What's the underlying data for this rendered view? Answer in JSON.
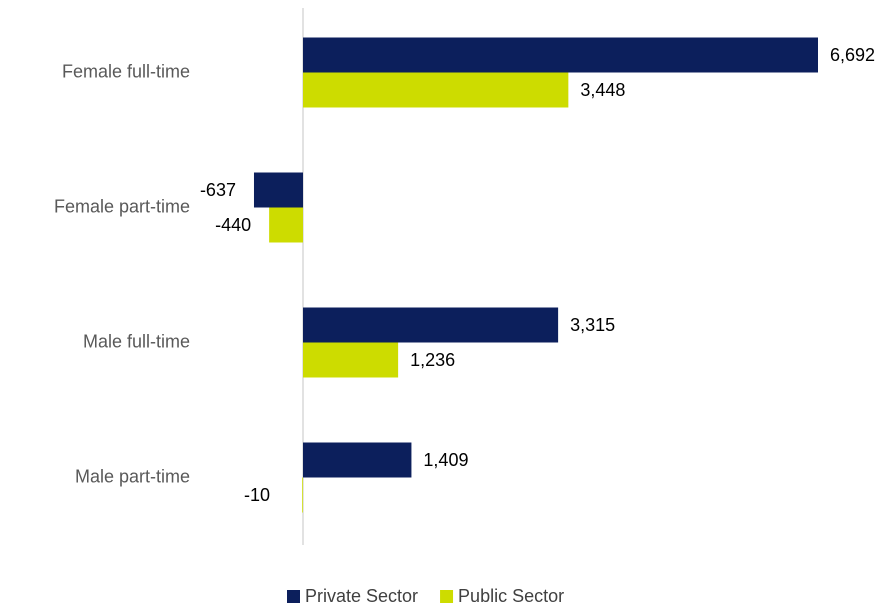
{
  "chart_data": {
    "type": "hbar",
    "categories": [
      "Female full-time",
      "Female part-time",
      "Male full-time",
      "Male part-time"
    ],
    "series": [
      {
        "name": "Private Sector",
        "color": "#0c1f5c",
        "values": [
          6692,
          -637,
          3315,
          1409
        ],
        "value_labels": [
          "6,692",
          "-637",
          "3,315",
          "1,409"
        ]
      },
      {
        "name": "Public Sector",
        "color": "#cddc00",
        "values": [
          3448,
          -440,
          1236,
          -10
        ],
        "value_labels": [
          "3,448",
          "-440",
          "1,236",
          "-10"
        ]
      }
    ],
    "legend": "bottom"
  }
}
